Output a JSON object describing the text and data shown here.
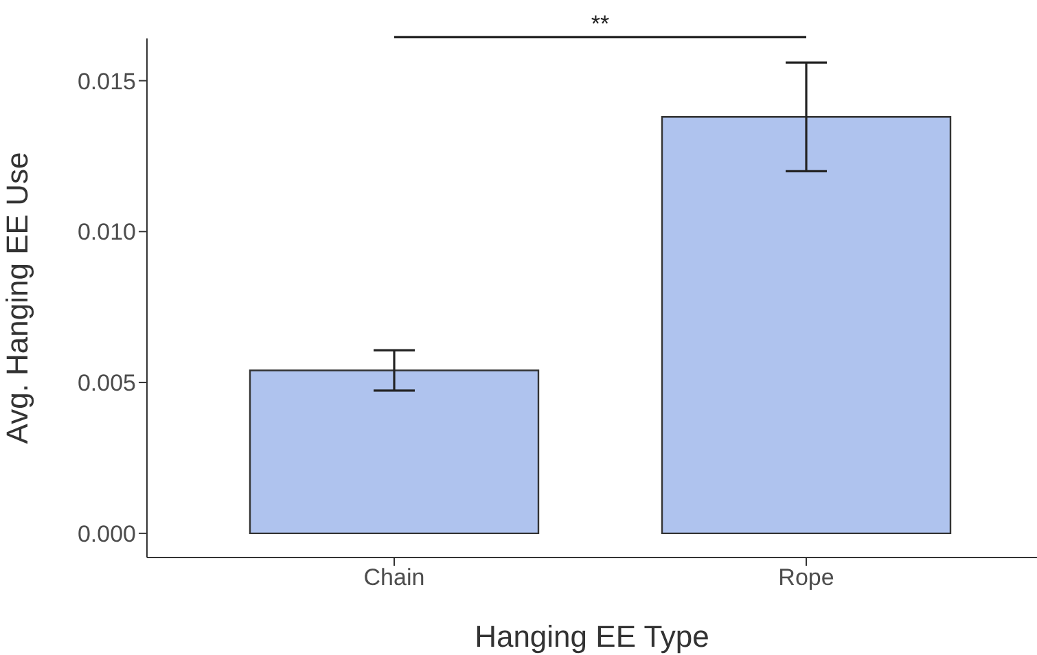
{
  "chart_data": {
    "type": "bar",
    "xlabel": "Hanging EE Type",
    "ylabel": "Avg. Hanging EE Use",
    "categories": [
      "Chain",
      "Rope"
    ],
    "values": [
      0.0054,
      0.0138
    ],
    "errors": [
      0.00067,
      0.0018
    ],
    "color": "#afc3ee",
    "ylim": [
      -0.0008,
      0.0164
    ],
    "yticks": [
      {
        "value": 0,
        "label": "0.000"
      },
      0.005,
      {
        "value": 0.01,
        "label": "0.010"
      },
      0.015
    ],
    "annotations": [
      "**"
    ]
  }
}
